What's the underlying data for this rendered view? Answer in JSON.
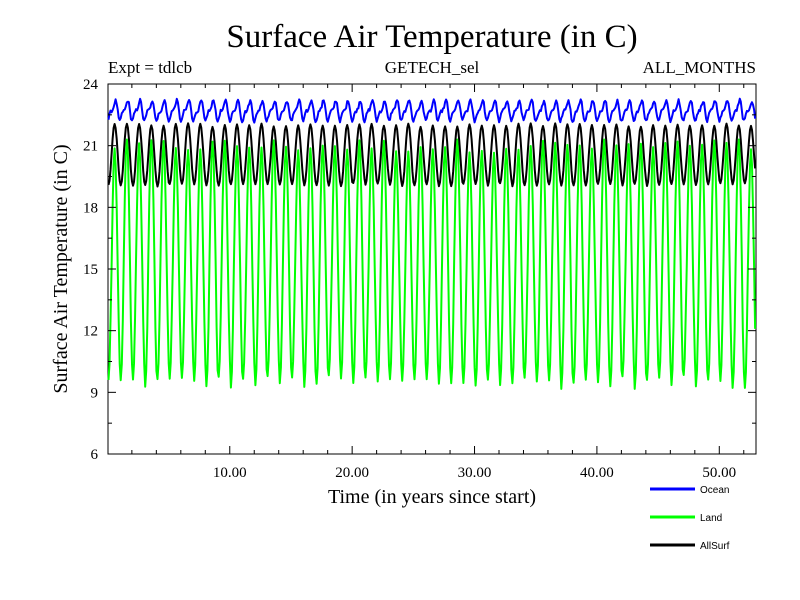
{
  "chart_data": {
    "type": "line",
    "title": "Surface Air Temperature (in C)",
    "subtitle_left": "Expt = tdlcb",
    "subtitle_center": "GETECH_sel",
    "subtitle_right": "ALL_MONTHS",
    "xlabel": "Time (in years since start)",
    "ylabel": "Surface Air Temperature (in C)",
    "xlim": [
      0.05,
      53.0
    ],
    "ylim": [
      6,
      24
    ],
    "x_ticks": [
      10,
      20,
      30,
      40,
      50
    ],
    "x_tick_labels": [
      "10.00",
      "20.00",
      "30.00",
      "40.00",
      "50.00"
    ],
    "y_ticks": [
      6,
      9,
      12,
      15,
      18,
      21,
      24
    ],
    "y_tick_labels": [
      "6",
      "9",
      "12",
      "15",
      "18",
      "21",
      "24"
    ],
    "grid": false,
    "legend_position": "bottom-right, below plot",
    "series": [
      {
        "name": "Ocean",
        "color": "#0000ff",
        "sampling": "monthly",
        "annual_cycle_min": 22.3,
        "annual_cycle_max": 23.1,
        "overall_range": [
          22.1,
          23.5
        ]
      },
      {
        "name": "Land",
        "color": "#00ff00",
        "sampling": "monthly",
        "annual_cycle_min": 9.5,
        "annual_cycle_max": 21.0,
        "overall_range": [
          8.9,
          21.3
        ]
      },
      {
        "name": "AllSurf",
        "color": "#000000",
        "sampling": "monthly",
        "annual_cycle_min": 19.1,
        "annual_cycle_max": 22.0,
        "overall_range": [
          18.7,
          22.4
        ]
      }
    ]
  }
}
